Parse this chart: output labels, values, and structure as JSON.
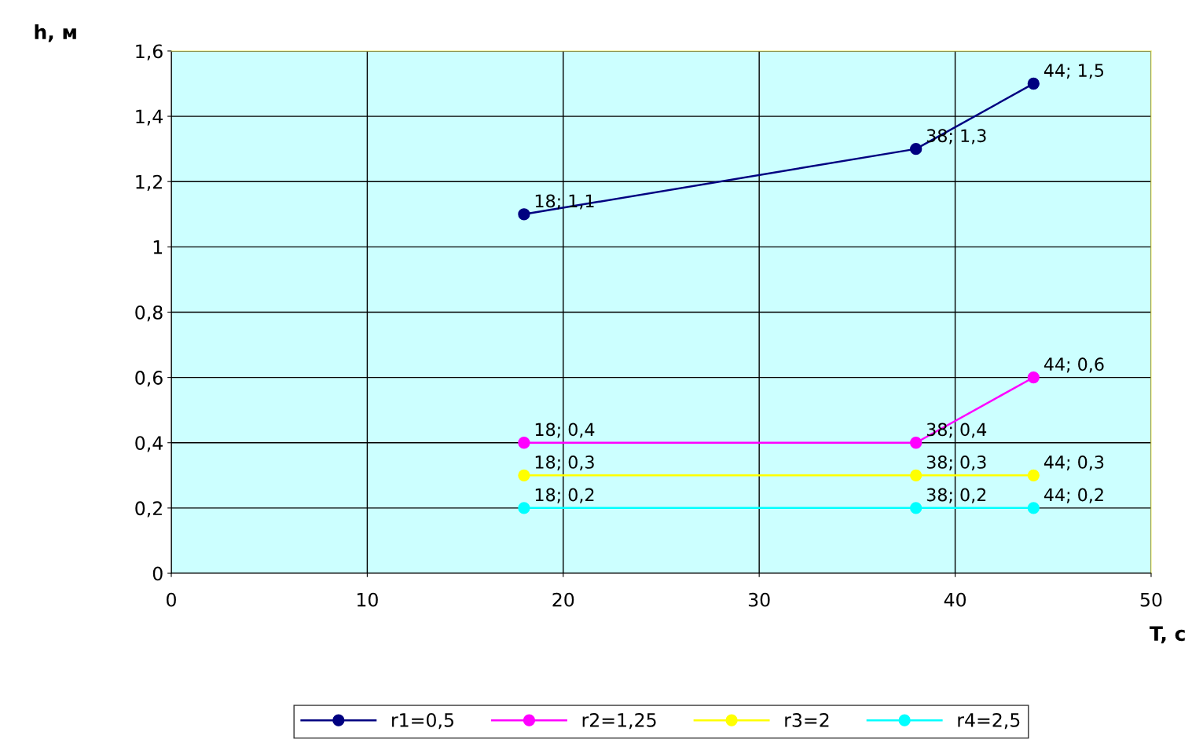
{
  "chart_data": {
    "type": "line",
    "xlabel": "T, c",
    "ylabel": "h, м",
    "x": [
      18,
      38,
      44
    ],
    "series": [
      {
        "name": "r1=0,5",
        "color": "#000080",
        "values": [
          1.1,
          1.3,
          1.5
        ],
        "value_labels": [
          "18; 1,1",
          "38; 1,3",
          "44; 1,5"
        ]
      },
      {
        "name": "r2=1,25",
        "color": "#ff00ff",
        "values": [
          0.4,
          0.4,
          0.6
        ],
        "value_labels": [
          "18; 0,4",
          "38; 0,4",
          "44; 0,6"
        ]
      },
      {
        "name": "r3=2",
        "color": "#ffff00",
        "values": [
          0.3,
          0.3,
          0.3
        ],
        "value_labels": [
          "18; 0,3",
          "38; 0,3",
          "44; 0,3"
        ]
      },
      {
        "name": "r4=2,5",
        "color": "#00ffff",
        "values": [
          0.2,
          0.2,
          0.2
        ],
        "value_labels": [
          "18; 0,2",
          "38; 0,2",
          "44; 0,2"
        ]
      }
    ],
    "xlim": [
      0,
      50
    ],
    "xticks": [
      0,
      10,
      20,
      30,
      40,
      50
    ],
    "ylim": [
      0,
      1.6
    ],
    "yticks": [
      0,
      {
        "value": 0.2,
        "label": "0,2"
      },
      {
        "value": 0.4,
        "label": "0,4"
      },
      {
        "value": 0.6,
        "label": "0,6"
      },
      {
        "value": 0.8,
        "label": "0,8"
      },
      1,
      {
        "value": 1.2,
        "label": "1,2"
      },
      {
        "value": 1.4,
        "label": "1,4"
      },
      {
        "value": 1.6,
        "label": "1,6"
      }
    ],
    "grid": true,
    "legend": "bottom",
    "marker": "circle",
    "line_style": "solid"
  }
}
